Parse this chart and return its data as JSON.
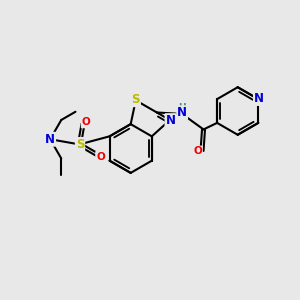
{
  "bg_color": "#e8e8e8",
  "bond_color": "#000000",
  "bond_width": 1.5,
  "S_color": "#bbbb00",
  "N_color": "#0000dd",
  "O_color": "#ee0000",
  "NH_color": "#448888",
  "font_size": 8.5,
  "fig_width": 3.0,
  "fig_height": 3.0,
  "xlim": [
    0,
    10
  ],
  "ylim": [
    0,
    10
  ]
}
